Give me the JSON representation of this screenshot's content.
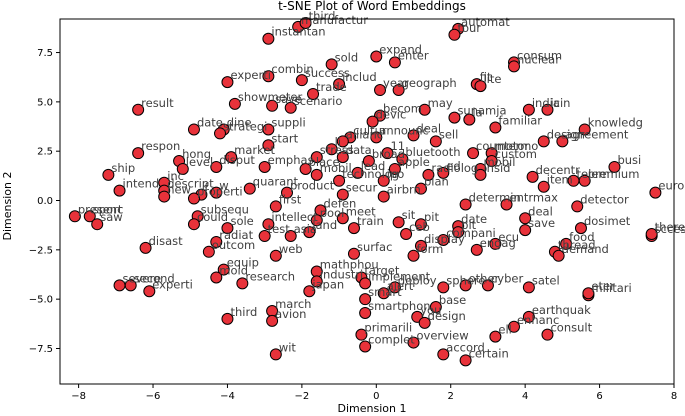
{
  "chart_data": {
    "type": "scatter",
    "title": "t-SNE Plot of Word Embeddings",
    "xlabel": "Dimension 1",
    "ylabel": "Dimension 2",
    "xlim": [
      -8.5,
      8.0
    ],
    "ylim": [
      -9.3,
      9.2
    ],
    "xticks": [
      -8,
      -6,
      -4,
      -2,
      0,
      2,
      4,
      6,
      8
    ],
    "yticks": [
      -7.5,
      -5.0,
      -2.5,
      0.0,
      2.5,
      5.0,
      7.5
    ],
    "grid": false,
    "marker_color": "#e8323a",
    "marker_edge": "#000000",
    "points": [
      {
        "x": -2.1,
        "y": 8.8,
        "label": "manufactur"
      },
      {
        "x": -1.9,
        "y": 9.0,
        "label": "third"
      },
      {
        "x": -2.9,
        "y": 8.2,
        "label": "instantan"
      },
      {
        "x": 2.2,
        "y": 8.7,
        "label": "automat"
      },
      {
        "x": 2.1,
        "y": 8.4,
        "label": "tour"
      },
      {
        "x": 0.0,
        "y": 7.3,
        "label": "expand"
      },
      {
        "x": 0.5,
        "y": 7.0,
        "label": "enter"
      },
      {
        "x": -1.2,
        "y": 6.9,
        "label": "sold"
      },
      {
        "x": 3.7,
        "y": 7.0,
        "label": "consum"
      },
      {
        "x": 3.7,
        "y": 6.8,
        "label": "nuclear"
      },
      {
        "x": -4.0,
        "y": 6.0,
        "label": "experti"
      },
      {
        "x": -2.9,
        "y": 6.3,
        "label": "combin"
      },
      {
        "x": -2.0,
        "y": 6.1,
        "label": "success"
      },
      {
        "x": -1.0,
        "y": 5.9,
        "label": "includ"
      },
      {
        "x": 0.1,
        "y": 5.6,
        "label": "year"
      },
      {
        "x": 0.6,
        "y": 5.6,
        "label": "geograph"
      },
      {
        "x": 2.7,
        "y": 5.9,
        "label": "fit"
      },
      {
        "x": 2.8,
        "y": 5.8,
        "label": "lite"
      },
      {
        "x": -6.4,
        "y": 4.6,
        "label": "result"
      },
      {
        "x": -3.8,
        "y": 4.9,
        "label": "showmeter"
      },
      {
        "x": -2.8,
        "y": 4.8,
        "label": "save"
      },
      {
        "x": -1.7,
        "y": 5.4,
        "label": "trade"
      },
      {
        "x": -2.3,
        "y": 4.7,
        "label": "scenario"
      },
      {
        "x": 0.1,
        "y": 4.3,
        "label": "becom"
      },
      {
        "x": 1.3,
        "y": 4.6,
        "label": "may"
      },
      {
        "x": 2.1,
        "y": 4.2,
        "label": "sunamja"
      },
      {
        "x": 2.5,
        "y": 4.1,
        "label": "la"
      },
      {
        "x": 4.1,
        "y": 4.6,
        "label": "india"
      },
      {
        "x": 4.6,
        "y": 4.6,
        "label": "icin"
      },
      {
        "x": -4.9,
        "y": 3.6,
        "label": "date"
      },
      {
        "x": -4.1,
        "y": 3.6,
        "label": "dine"
      },
      {
        "x": -4.2,
        "y": 3.4,
        "label": "strategi"
      },
      {
        "x": -2.9,
        "y": 3.6,
        "label": "suppli"
      },
      {
        "x": -0.1,
        "y": 4.0,
        "label": "devic"
      },
      {
        "x": -0.7,
        "y": 3.2,
        "label": "cultur"
      },
      {
        "x": 0.0,
        "y": 3.2,
        "label": "announc"
      },
      {
        "x": 1.0,
        "y": 3.3,
        "label": "deal"
      },
      {
        "x": 1.6,
        "y": 3.0,
        "label": "sell"
      },
      {
        "x": 3.2,
        "y": 3.7,
        "label": "familiar"
      },
      {
        "x": 5.6,
        "y": 3.6,
        "label": "knowledg"
      },
      {
        "x": 5.0,
        "y": 3.0,
        "label": "agreement"
      },
      {
        "x": 4.5,
        "y": 3.0,
        "label": "design"
      },
      {
        "x": -6.4,
        "y": 2.4,
        "label": "respon"
      },
      {
        "x": -2.9,
        "y": 2.8,
        "label": "start"
      },
      {
        "x": -3.9,
        "y": 2.2,
        "label": "market"
      },
      {
        "x": -0.9,
        "y": 3.0,
        "label": "allianc"
      },
      {
        "x": -1.2,
        "y": 2.6,
        "label": "li"
      },
      {
        "x": -1.6,
        "y": 2.2,
        "label": "stress"
      },
      {
        "x": -0.9,
        "y": 2.2,
        "label": "data"
      },
      {
        "x": -0.2,
        "y": 2.0,
        "label": "broad"
      },
      {
        "x": 0.3,
        "y": 2.4,
        "label": "11"
      },
      {
        "x": 0.7,
        "y": 2.1,
        "label": "bluetooth"
      },
      {
        "x": 2.6,
        "y": 2.4,
        "label": "countermo"
      },
      {
        "x": 3.1,
        "y": 2.4,
        "label": "motor"
      },
      {
        "x": 3.1,
        "y": 2.0,
        "label": "custom"
      },
      {
        "x": -7.2,
        "y": 1.3,
        "label": "ship"
      },
      {
        "x": -5.3,
        "y": 2.0,
        "label": "hong"
      },
      {
        "x": -5.2,
        "y": 1.6,
        "label": "level"
      },
      {
        "x": -4.3,
        "y": 1.7,
        "label": "disput"
      },
      {
        "x": -3.0,
        "y": 1.7,
        "label": "emphas"
      },
      {
        "x": -1.9,
        "y": 1.6,
        "label": "place"
      },
      {
        "x": -1.6,
        "y": 1.3,
        "label": "mobil"
      },
      {
        "x": -0.5,
        "y": 1.4,
        "label": "lead"
      },
      {
        "x": 0.5,
        "y": 1.6,
        "label": "apple"
      },
      {
        "x": 1.4,
        "y": 1.3,
        "label": "radiolog"
      },
      {
        "x": 1.8,
        "y": 1.4,
        "label": "ed"
      },
      {
        "x": 2.8,
        "y": 1.6,
        "label": "mobil"
      },
      {
        "x": 2.8,
        "y": 1.3,
        "label": "insid"
      },
      {
        "x": 6.4,
        "y": 1.7,
        "label": "busi"
      },
      {
        "x": 5.3,
        "y": 1.0,
        "label": "telem"
      },
      {
        "x": 5.6,
        "y": 1.0,
        "label": "premium"
      },
      {
        "x": -6.9,
        "y": 0.5,
        "label": "intend"
      },
      {
        "x": -5.7,
        "y": 0.9,
        "label": "inc"
      },
      {
        "x": -5.7,
        "y": 0.5,
        "label": "descript"
      },
      {
        "x": -4.7,
        "y": 0.3,
        "label": "f"
      },
      {
        "x": -4.3,
        "y": 0.4,
        "label": "w"
      },
      {
        "x": -3.4,
        "y": 0.6,
        "label": "quarant"
      },
      {
        "x": -2.4,
        "y": 0.4,
        "label": "product"
      },
      {
        "x": -1.0,
        "y": 1.0,
        "label": "technolog"
      },
      {
        "x": 0.2,
        "y": 1.0,
        "label": "ipo"
      },
      {
        "x": 1.2,
        "y": 0.6,
        "label": "plan"
      },
      {
        "x": 4.2,
        "y": 1.2,
        "label": "decentr"
      },
      {
        "x": 4.5,
        "y": 0.7,
        "label": "item"
      },
      {
        "x": 7.5,
        "y": 0.4,
        "label": "europ"
      },
      {
        "x": -5.7,
        "y": 0.2,
        "label": "new"
      },
      {
        "x": -4.9,
        "y": 0.1,
        "label": "properti"
      },
      {
        "x": -2.7,
        "y": -0.3,
        "label": "first"
      },
      {
        "x": -0.9,
        "y": 0.3,
        "label": "secur"
      },
      {
        "x": 0.2,
        "y": 0.2,
        "label": "airbrn"
      },
      {
        "x": 2.4,
        "y": -0.2,
        "label": "determin"
      },
      {
        "x": 3.5,
        "y": -0.2,
        "label": "entrmax"
      },
      {
        "x": 5.4,
        "y": -0.3,
        "label": "detector"
      },
      {
        "x": -8.1,
        "y": -0.8,
        "label": "presenc"
      },
      {
        "x": -7.7,
        "y": -0.8,
        "label": "sport"
      },
      {
        "x": -7.5,
        "y": -1.2,
        "label": "saw"
      },
      {
        "x": -4.8,
        "y": -0.8,
        "label": "subsequ"
      },
      {
        "x": -4.9,
        "y": -1.2,
        "label": "could"
      },
      {
        "x": -4.0,
        "y": -1.4,
        "label": "sole"
      },
      {
        "x": -2.9,
        "y": -1.2,
        "label": "intellect"
      },
      {
        "x": -1.5,
        "y": -0.5,
        "label": "defen"
      },
      {
        "x": -1.6,
        "y": -1.0,
        "label": "pool"
      },
      {
        "x": -0.9,
        "y": -0.9,
        "label": "meet"
      },
      {
        "x": -0.6,
        "y": -1.4,
        "label": "train"
      },
      {
        "x": 0.6,
        "y": -1.1,
        "label": "sit"
      },
      {
        "x": 1.2,
        "y": -1.2,
        "label": "pit"
      },
      {
        "x": 2.2,
        "y": -1.3,
        "label": "date"
      },
      {
        "x": 2.2,
        "y": -1.6,
        "label": "pit"
      },
      {
        "x": 4.0,
        "y": -0.9,
        "label": "deal"
      },
      {
        "x": 4.0,
        "y": -1.5,
        "label": "save"
      },
      {
        "x": 5.5,
        "y": -1.4,
        "label": "dosimet"
      },
      {
        "x": 5.1,
        "y": -2.2,
        "label": "food"
      },
      {
        "x": 4.8,
        "y": -2.6,
        "label": "thread"
      },
      {
        "x": 7.4,
        "y": -1.8,
        "label": "sccesid"
      },
      {
        "x": 7.4,
        "y": -1.7,
        "label": "thereid"
      },
      {
        "x": -6.2,
        "y": -2.4,
        "label": "disast"
      },
      {
        "x": -4.5,
        "y": -2.6,
        "label": "outcom"
      },
      {
        "x": -4.3,
        "y": -2.1,
        "label": "radiat"
      },
      {
        "x": -3.0,
        "y": -1.8,
        "label": "test"
      },
      {
        "x": -2.3,
        "y": -1.8,
        "label": "asia"
      },
      {
        "x": -1.8,
        "y": -1.6,
        "label": "land"
      },
      {
        "x": -0.6,
        "y": -2.7,
        "label": "surfac"
      },
      {
        "x": 0.8,
        "y": -1.7,
        "label": "ceb"
      },
      {
        "x": 1.0,
        "y": -2.8,
        "label": "form"
      },
      {
        "x": 1.2,
        "y": -2.3,
        "label": "display"
      },
      {
        "x": 1.8,
        "y": -2.0,
        "label": "compani"
      },
      {
        "x": 2.7,
        "y": -2.5,
        "label": "engag"
      },
      {
        "x": 3.2,
        "y": -2.2,
        "label": "ecu"
      },
      {
        "x": 4.9,
        "y": -2.8,
        "label": "demand"
      },
      {
        "x": -4.1,
        "y": -3.5,
        "label": "equip"
      },
      {
        "x": -4.3,
        "y": -3.9,
        "label": "moid"
      },
      {
        "x": -3.6,
        "y": -4.2,
        "label": "research"
      },
      {
        "x": -2.7,
        "y": -2.8,
        "label": "web"
      },
      {
        "x": -1.6,
        "y": -3.6,
        "label": "mathphou"
      },
      {
        "x": -1.6,
        "y": -4.1,
        "label": "industri"
      },
      {
        "x": -0.4,
        "y": -3.9,
        "label": "target"
      },
      {
        "x": -0.3,
        "y": -4.2,
        "label": "implement"
      },
      {
        "x": 0.2,
        "y": -4.7,
        "label": "alert"
      },
      {
        "x": 0.5,
        "y": -4.4,
        "label": "deploy"
      },
      {
        "x": 1.8,
        "y": -4.4,
        "label": "sphere"
      },
      {
        "x": 2.4,
        "y": -4.3,
        "label": "other"
      },
      {
        "x": 3.0,
        "y": -4.3,
        "label": "cyber"
      },
      {
        "x": 4.1,
        "y": -4.4,
        "label": "satel"
      },
      {
        "x": -6.9,
        "y": -4.3,
        "label": "severe"
      },
      {
        "x": -6.6,
        "y": -4.3,
        "label": "second"
      },
      {
        "x": -6.1,
        "y": -4.6,
        "label": "experti"
      },
      {
        "x": -1.8,
        "y": -4.6,
        "label": "japan"
      },
      {
        "x": -0.3,
        "y": -5.0,
        "label": "smart"
      },
      {
        "x": 1.6,
        "y": -5.4,
        "label": "base"
      },
      {
        "x": 5.7,
        "y": -4.8,
        "label": "militari"
      },
      {
        "x": 5.7,
        "y": -4.7,
        "label": "eter"
      },
      {
        "x": -4.0,
        "y": -6.0,
        "label": "third"
      },
      {
        "x": -2.8,
        "y": -5.6,
        "label": "march"
      },
      {
        "x": -2.8,
        "y": -6.1,
        "label": "avion"
      },
      {
        "x": -0.3,
        "y": -5.7,
        "label": "smartphon"
      },
      {
        "x": 1.1,
        "y": -5.9,
        "label": "you"
      },
      {
        "x": 1.3,
        "y": -6.2,
        "label": "design"
      },
      {
        "x": 4.1,
        "y": -5.9,
        "label": "earthquak"
      },
      {
        "x": 3.7,
        "y": -6.4,
        "label": "enhanc"
      },
      {
        "x": 4.6,
        "y": -6.8,
        "label": "consult"
      },
      {
        "x": -0.4,
        "y": -6.8,
        "label": "primarili"
      },
      {
        "x": 3.2,
        "y": -6.9,
        "label": "ell"
      },
      {
        "x": -0.3,
        "y": -7.4,
        "label": "complet"
      },
      {
        "x": 1.0,
        "y": -7.2,
        "label": "overview"
      },
      {
        "x": -2.7,
        "y": -7.8,
        "label": "wit"
      },
      {
        "x": 1.8,
        "y": -7.8,
        "label": "accord"
      },
      {
        "x": 2.4,
        "y": -8.1,
        "label": "certain"
      }
    ]
  }
}
